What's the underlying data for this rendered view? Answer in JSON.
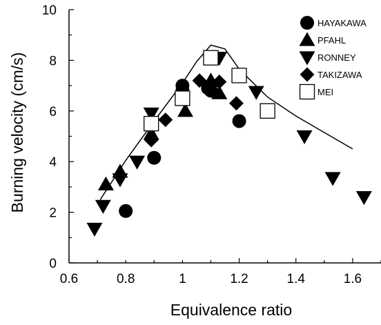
{
  "chart_data": {
    "type": "scatter",
    "xlabel": "Equivalence ratio",
    "ylabel": "Burning velocity (cm/s)",
    "xlim": [
      0.6,
      1.7
    ],
    "ylim": [
      0,
      10
    ],
    "x_ticks": [
      "0.6",
      "0.8",
      "1",
      "1.2",
      "1.4",
      "1.6"
    ],
    "y_ticks": [
      "0",
      "2",
      "4",
      "6",
      "8",
      "10"
    ],
    "grid": false,
    "legend_position": "top-right",
    "series": [
      {
        "name": "HAYAKAWA",
        "marker": "circle",
        "points": [
          [
            0.8,
            2.05
          ],
          [
            0.9,
            4.15
          ],
          [
            1.0,
            7.0
          ],
          [
            1.09,
            6.9
          ],
          [
            1.1,
            6.8
          ],
          [
            1.2,
            5.6
          ]
        ]
      },
      {
        "name": "PFAHL",
        "marker": "triangle-up",
        "points": [
          [
            0.73,
            3.1
          ],
          [
            0.78,
            3.6
          ],
          [
            0.89,
            5.1
          ],
          [
            1.01,
            6.0
          ],
          [
            1.1,
            7.2
          ],
          [
            1.13,
            6.7
          ]
        ]
      },
      {
        "name": "RONNEY",
        "marker": "triangle-down",
        "points": [
          [
            0.69,
            1.35
          ],
          [
            0.72,
            2.25
          ],
          [
            0.78,
            3.3
          ],
          [
            0.84,
            4.0
          ],
          [
            0.89,
            5.9
          ],
          [
            1.13,
            8.1
          ],
          [
            1.26,
            6.75
          ],
          [
            1.43,
            5.0
          ],
          [
            1.53,
            3.35
          ],
          [
            1.64,
            2.6
          ]
        ]
      },
      {
        "name": "TAKIZAWA",
        "marker": "diamond",
        "points": [
          [
            0.89,
            4.85
          ],
          [
            0.94,
            5.65
          ],
          [
            1.0,
            6.85
          ],
          [
            1.06,
            7.2
          ],
          [
            1.1,
            7.0
          ],
          [
            1.13,
            7.15
          ],
          [
            1.19,
            6.3
          ]
        ]
      },
      {
        "name": "MEI",
        "marker": "open-square",
        "points": [
          [
            0.89,
            5.5
          ],
          [
            1.0,
            6.5
          ],
          [
            1.1,
            8.1
          ],
          [
            1.2,
            7.4
          ],
          [
            1.3,
            6.0
          ]
        ]
      }
    ],
    "line": {
      "points": [
        [
          0.71,
          2.5
        ],
        [
          0.8,
          4.05
        ],
        [
          0.9,
          5.6
        ],
        [
          1.0,
          7.1
        ],
        [
          1.05,
          7.95
        ],
        [
          1.1,
          8.6
        ],
        [
          1.15,
          8.45
        ],
        [
          1.2,
          7.65
        ],
        [
          1.3,
          6.55
        ],
        [
          1.4,
          5.8
        ],
        [
          1.5,
          5.15
        ],
        [
          1.6,
          4.5
        ]
      ]
    },
    "colors": {
      "markers": "#000000",
      "line": "#000000",
      "background": "#ffffff"
    }
  }
}
